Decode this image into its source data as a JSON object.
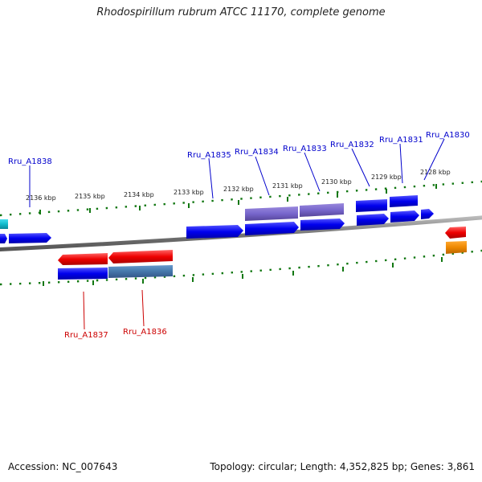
{
  "title": "Rhodospirillum rubrum ATCC 11170, complete genome",
  "footer": {
    "accession": "Accession: NC_007643",
    "summary": "Topology: circular; Length: 4,352,825 bp; Genes: 3,861"
  },
  "ticks": [
    "2136 kbp",
    "2135 kbp",
    "2134 kbp",
    "2133 kbp",
    "2132 kbp",
    "2131 kbp",
    "2130 kbp",
    "2129 kbp",
    "2128 kbp"
  ],
  "gene_labels": {
    "Rru_A1838": "Rru_A1838",
    "Rru_A1835": "Rru_A1835",
    "Rru_A1834": "Rru_A1834",
    "Rru_A1833": "Rru_A1833",
    "Rru_A1832": "Rru_A1832",
    "Rru_A1831": "Rru_A1831",
    "Rru_A1830": "Rru_A1830",
    "Rru_A1837": "Rru_A1837",
    "Rru_A1836": "Rru_A1836"
  },
  "colors": {
    "forward_gene": "#0000ee",
    "reverse_gene": "#ee0000",
    "highlight_gene": "#7766cc",
    "steel_gene": "#4477aa",
    "orange_gene": "#ee8800",
    "cyan_gene": "#11bbcc",
    "tick": "#117711",
    "backbone": "#888888",
    "label_forward": "#0000cc",
    "label_reverse": "#cc0000"
  }
}
